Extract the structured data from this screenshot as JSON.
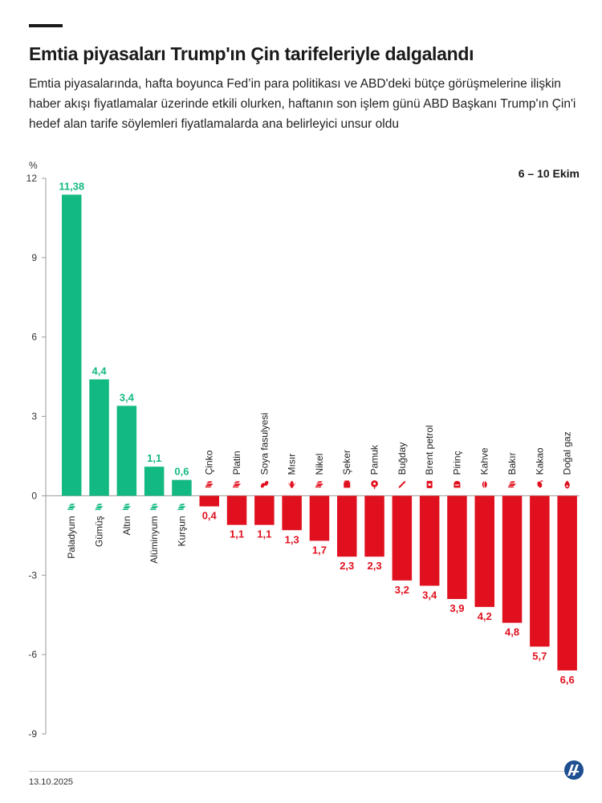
{
  "header": {
    "title": "Emtia piyasaları Trump'ın Çin tarifeleriyle dalgalandı",
    "subtitle": "Emtia piyasalarında, hafta boyunca Fed’in para politikası ve ABD'deki bütçe görüşmelerine ilişkin haber akışı fiyatlamalar üzerinde etkili olurken, haftanın son işlem günü ABD Başkanı Trump'ın Çin'i hedef alan tarife söylemleri fiyatlamalarda ana belirleyici unsur oldu"
  },
  "chart_data": {
    "type": "bar",
    "unit_label": "%",
    "date_range": "6 – 10 Ekim",
    "categories": [
      "Paladyum",
      "Gümüş",
      "Altın",
      "Alüminyum",
      "Kurşun",
      "Çinko",
      "Platin",
      "Soya fasulyesi",
      "Mısır",
      "Nikel",
      "Şeker",
      "Pamuk",
      "Buğday",
      "Brent petrol",
      "Pirinç",
      "Kahve",
      "Bakır",
      "Kakao",
      "Doğal gaz"
    ],
    "values": [
      11.38,
      4.4,
      3.4,
      1.1,
      0.6,
      -0.4,
      -1.1,
      -1.1,
      -1.3,
      -1.7,
      -2.3,
      -2.3,
      -3.2,
      -3.4,
      -3.9,
      -4.2,
      -4.8,
      -5.7,
      -6.6
    ],
    "value_labels": [
      "11,38",
      "4,4",
      "3,4",
      "1,1",
      "0,6",
      "0,4",
      "1,1",
      "1,1",
      "1,3",
      "1,7",
      "2,3",
      "2,3",
      "3,2",
      "3,4",
      "3,9",
      "4,2",
      "4,8",
      "5,7",
      "6,6"
    ],
    "icons": [
      "metal-ingot-icon",
      "metal-ingot-icon",
      "metal-ingot-icon",
      "metal-ingot-icon",
      "metal-ingot-icon",
      "metal-ingot-icon",
      "metal-ingot-icon",
      "soybean-icon",
      "corn-icon",
      "metal-ingot-icon",
      "sugar-icon",
      "cotton-icon",
      "wheat-icon",
      "oil-barrel-icon",
      "rice-icon",
      "coffee-bean-icon",
      "metal-ingot-icon",
      "cocoa-icon",
      "gas-flame-icon"
    ],
    "ylim": [
      -9,
      12
    ],
    "yticks": [
      "12",
      "9",
      "6",
      "3",
      "0",
      "-3",
      "-6",
      "-9"
    ],
    "ytick_values": [
      12,
      9,
      6,
      3,
      0,
      -3,
      -6,
      -9
    ],
    "colors": {
      "positive": "#13b982",
      "negative": "#e0101e"
    },
    "grid": false
  },
  "footer": {
    "date": "13.10.2025"
  }
}
